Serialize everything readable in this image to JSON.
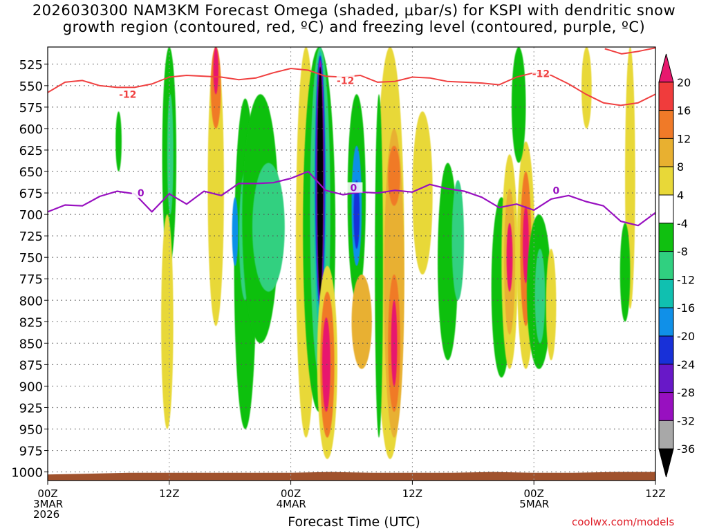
{
  "chart_data": {
    "type": "heatmap",
    "title_line1": "2026030300 NAM3KM Forecast Omega (shaded, μbar/s) for KSPI with dendritic snow",
    "title_line2": "growth region (contoured, red, ºC) and freezing level (contoured, purple, ºC)",
    "xlabel": "Forecast Time (UTC)",
    "credit": "coolwx.com/models",
    "x_range_hours": [
      0,
      60
    ],
    "y_range_mb": [
      1010,
      505
    ],
    "y_ticks": [
      525,
      550,
      575,
      600,
      625,
      650,
      675,
      700,
      725,
      750,
      775,
      800,
      825,
      850,
      875,
      900,
      925,
      950,
      975,
      1000
    ],
    "x_ticks": [
      {
        "hour": 0,
        "lines": [
          "00Z",
          "3MAR",
          "2026"
        ]
      },
      {
        "hour": 12,
        "lines": [
          "12Z"
        ]
      },
      {
        "hour": 24,
        "lines": [
          "00Z",
          "4MAR"
        ]
      },
      {
        "hour": 36,
        "lines": [
          "12Z"
        ]
      },
      {
        "hour": 48,
        "lines": [
          "00Z",
          "5MAR"
        ]
      },
      {
        "hour": 60,
        "lines": [
          "12Z"
        ]
      }
    ],
    "colorbar": {
      "labels": [
        "20",
        "16",
        "12",
        "8",
        "4",
        "-4",
        "-8",
        "-12",
        "-16",
        "-20",
        "-24",
        "-28",
        "-32",
        "-36"
      ],
      "colors": [
        "#e8186e",
        "#f03c3c",
        "#f07a28",
        "#e8b030",
        "#e8d838",
        "#ffffff",
        "#10c010",
        "#30d080",
        "#10c0b0",
        "#1090e8",
        "#1830d8",
        "#6818c8",
        "#9810c0",
        "#a8a8a8",
        "#000000"
      ]
    },
    "omega_regions": [
      {
        "hour": 12,
        "p_top": 505,
        "p_bot": 760,
        "hw": 0.7,
        "c": "#10c010"
      },
      {
        "hour": 12.1,
        "p_top": 560,
        "p_bot": 700,
        "hw": 0.3,
        "c": "#30d080"
      },
      {
        "hour": 11.8,
        "p_top": 700,
        "p_bot": 950,
        "hw": 0.6,
        "c": "#e8d838"
      },
      {
        "hour": 7,
        "p_top": 580,
        "p_bot": 650,
        "hw": 0.3,
        "c": "#10c010"
      },
      {
        "hour": 16.6,
        "p_top": 505,
        "p_bot": 830,
        "hw": 0.8,
        "c": "#e8d838"
      },
      {
        "hour": 16.6,
        "p_top": 505,
        "p_bot": 600,
        "hw": 0.5,
        "c": "#f07a28"
      },
      {
        "hour": 16.6,
        "p_top": 505,
        "p_bot": 560,
        "hw": 0.25,
        "c": "#e8186e"
      },
      {
        "hour": 19.5,
        "p_top": 565,
        "p_bot": 950,
        "hw": 1.1,
        "c": "#10c010"
      },
      {
        "hour": 19.5,
        "p_top": 650,
        "p_bot": 800,
        "hw": 0.6,
        "c": "#30d080"
      },
      {
        "hour": 18.5,
        "p_top": 680,
        "p_bot": 760,
        "hw": 0.3,
        "c": "#1090e8"
      },
      {
        "hour": 21,
        "p_top": 560,
        "p_bot": 850,
        "hw": 1.8,
        "c": "#10c010"
      },
      {
        "hour": 21.8,
        "p_top": 640,
        "p_bot": 790,
        "hw": 1.6,
        "c": "#30d080"
      },
      {
        "hour": 25.5,
        "p_top": 505,
        "p_bot": 960,
        "hw": 1.0,
        "c": "#e8d838"
      },
      {
        "hour": 26.8,
        "p_top": 505,
        "p_bot": 930,
        "hw": 1.6,
        "c": "#10c010"
      },
      {
        "hour": 26.9,
        "p_top": 505,
        "p_bot": 890,
        "hw": 1.0,
        "c": "#30d080"
      },
      {
        "hour": 26.9,
        "p_top": 510,
        "p_bot": 840,
        "hw": 0.6,
        "c": "#10c0b0"
      },
      {
        "hour": 26.9,
        "p_top": 515,
        "p_bot": 810,
        "hw": 0.5,
        "c": "#1830d8"
      },
      {
        "hour": 26.9,
        "p_top": 520,
        "p_bot": 800,
        "hw": 0.38,
        "c": "#9810c0"
      },
      {
        "hour": 26.9,
        "p_top": 528,
        "p_bot": 795,
        "hw": 0.3,
        "c": "#000000"
      },
      {
        "hour": 27.6,
        "p_top": 760,
        "p_bot": 985,
        "hw": 1.0,
        "c": "#e8d838"
      },
      {
        "hour": 27.6,
        "p_top": 790,
        "p_bot": 960,
        "hw": 0.7,
        "c": "#f07a28"
      },
      {
        "hour": 27.5,
        "p_top": 820,
        "p_bot": 930,
        "hw": 0.4,
        "c": "#e8186e"
      },
      {
        "hour": 30.5,
        "p_top": 560,
        "p_bot": 800,
        "hw": 0.9,
        "c": "#10c010"
      },
      {
        "hour": 30.5,
        "p_top": 620,
        "p_bot": 760,
        "hw": 0.5,
        "c": "#1090e8"
      },
      {
        "hour": 30.5,
        "p_top": 660,
        "p_bot": 740,
        "hw": 0.3,
        "c": "#1830d8"
      },
      {
        "hour": 31,
        "p_top": 770,
        "p_bot": 880,
        "hw": 1.0,
        "c": "#e8b030"
      },
      {
        "hour": 33.8,
        "p_top": 505,
        "p_bot": 985,
        "hw": 1.4,
        "c": "#e8d838"
      },
      {
        "hour": 34.2,
        "p_top": 600,
        "p_bot": 960,
        "hw": 1.0,
        "c": "#e8b030"
      },
      {
        "hour": 34.2,
        "p_top": 620,
        "p_bot": 690,
        "hw": 0.6,
        "c": "#f07a28"
      },
      {
        "hour": 34.2,
        "p_top": 770,
        "p_bot": 930,
        "hw": 0.6,
        "c": "#f07a28"
      },
      {
        "hour": 34.2,
        "p_top": 800,
        "p_bot": 900,
        "hw": 0.3,
        "c": "#e8186e"
      },
      {
        "hour": 32.7,
        "p_top": 560,
        "p_bot": 960,
        "hw": 0.4,
        "c": "#10c010"
      },
      {
        "hour": 37,
        "p_top": 580,
        "p_bot": 770,
        "hw": 1.0,
        "c": "#e8d838"
      },
      {
        "hour": 39.5,
        "p_top": 640,
        "p_bot": 870,
        "hw": 1.0,
        "c": "#10c010"
      },
      {
        "hour": 40.5,
        "p_top": 660,
        "p_bot": 800,
        "hw": 0.6,
        "c": "#30d080"
      },
      {
        "hour": 44.8,
        "p_top": 680,
        "p_bot": 890,
        "hw": 1.0,
        "c": "#10c010"
      },
      {
        "hour": 45.6,
        "p_top": 630,
        "p_bot": 880,
        "hw": 0.8,
        "c": "#e8d838"
      },
      {
        "hour": 45.6,
        "p_top": 670,
        "p_bot": 840,
        "hw": 0.55,
        "c": "#e8b030"
      },
      {
        "hour": 45.6,
        "p_top": 710,
        "p_bot": 790,
        "hw": 0.3,
        "c": "#e8186e"
      },
      {
        "hour": 47.2,
        "p_top": 615,
        "p_bot": 880,
        "hw": 0.9,
        "c": "#e8d838"
      },
      {
        "hour": 47.2,
        "p_top": 650,
        "p_bot": 830,
        "hw": 0.55,
        "c": "#f07a28"
      },
      {
        "hour": 47.2,
        "p_top": 690,
        "p_bot": 780,
        "hw": 0.3,
        "c": "#e8186e"
      },
      {
        "hour": 48.5,
        "p_top": 700,
        "p_bot": 880,
        "hw": 1.2,
        "c": "#10c010"
      },
      {
        "hour": 48.6,
        "p_top": 740,
        "p_bot": 850,
        "hw": 0.5,
        "c": "#30d080"
      },
      {
        "hour": 46.5,
        "p_top": 505,
        "p_bot": 640,
        "hw": 0.7,
        "c": "#10c010"
      },
      {
        "hour": 49.7,
        "p_top": 740,
        "p_bot": 870,
        "hw": 0.5,
        "c": "#e8d838"
      },
      {
        "hour": 53.2,
        "p_top": 505,
        "p_bot": 600,
        "hw": 0.5,
        "c": "#e8d838"
      },
      {
        "hour": 57.5,
        "p_top": 505,
        "p_bot": 810,
        "hw": 0.5,
        "c": "#e8d838"
      },
      {
        "hour": 57,
        "p_top": 710,
        "p_bot": 825,
        "hw": 0.5,
        "c": "#10c010"
      }
    ],
    "dgz_contours": [
      {
        "label": "-12",
        "hour_range": [
          0,
          60
        ],
        "pressure": [
          558,
          546,
          544,
          550,
          552,
          552,
          548,
          540,
          538,
          539,
          540,
          543,
          541,
          535,
          530,
          532,
          539,
          540,
          538,
          546,
          545,
          540,
          541,
          545,
          546,
          547,
          549,
          540,
          535,
          538,
          548,
          560,
          570,
          573,
          570,
          560
        ]
      },
      {
        "label": "-12",
        "hour_range": [
          55,
          60
        ],
        "pressure": [
          507,
          513,
          510,
          506
        ]
      }
    ],
    "freezing_level": {
      "label": "0",
      "hour_range": [
        0,
        60
      ],
      "pressure": [
        697,
        689,
        690,
        679,
        673,
        676,
        697,
        676,
        688,
        673,
        678,
        664,
        664,
        663,
        658,
        650,
        672,
        677,
        674,
        675,
        672,
        674,
        665,
        670,
        673,
        680,
        692,
        688,
        695,
        682,
        678,
        685,
        690,
        708,
        713,
        698
      ]
    },
    "ground": {
      "pressure_top": [
        1003,
        1002,
        1001,
        1001,
        1001,
        1001,
        1001,
        1000,
        1001,
        1001,
        1001,
        1000,
        1001,
        1001,
        1000,
        1000
      ]
    }
  }
}
